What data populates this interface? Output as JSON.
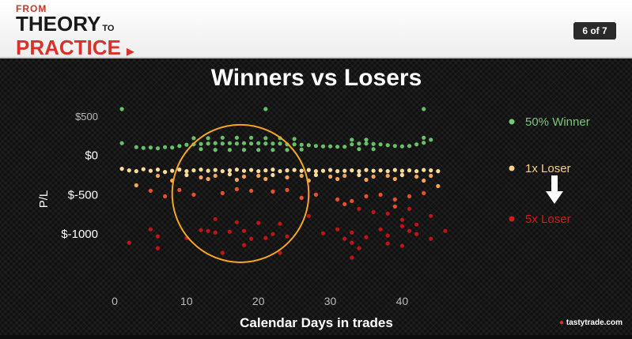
{
  "header": {
    "logo_from": "FROM",
    "logo_theory": "THEORY",
    "logo_to": "TO",
    "logo_practice": "PRACTICE",
    "page_indicator": "6 of 7"
  },
  "brand": {
    "name": "tastytrade.com"
  },
  "colors": {
    "winner": "#6abf69",
    "loser1x": "#f7d08a",
    "loser5x": "#d7191c",
    "ellipse": "#f5a623",
    "arrow": "#ffffff"
  },
  "chart_data": {
    "type": "scatter",
    "title": "Winners vs Losers",
    "xlabel": "Calendar Days in trades",
    "ylabel": "P/L",
    "xlim": [
      0,
      47
    ],
    "ylim": [
      -1300,
      650
    ],
    "x_ticks": [
      0,
      10,
      20,
      30,
      40
    ],
    "y_ticks": [
      {
        "value": 500,
        "label": "$500"
      },
      {
        "value": 0,
        "label": "$0"
      },
      {
        "value": -500,
        "label": "$-500"
      },
      {
        "value": -1000,
        "label": "$-1000"
      }
    ],
    "legend": [
      {
        "name": "50% Winner",
        "color": "#6abf69"
      },
      {
        "name": "1x Loser",
        "color": "#f7d08a"
      },
      {
        "name": "5x Loser",
        "color": "#d7191c"
      }
    ],
    "annotation": {
      "type": "ellipse",
      "center": [
        17,
        -400
      ],
      "x_range": [
        8,
        27
      ],
      "y_range": [
        -1360,
        390
      ]
    },
    "series": [
      {
        "name": "50% Winner",
        "points": [
          [
            1,
            590
          ],
          [
            21,
            590
          ],
          [
            43,
            590
          ],
          [
            1,
            155
          ],
          [
            3,
            105
          ],
          [
            4,
            95
          ],
          [
            5,
            100
          ],
          [
            6,
            90
          ],
          [
            7,
            105
          ],
          [
            8,
            100
          ],
          [
            9,
            120
          ],
          [
            10,
            135
          ],
          [
            11,
            140
          ],
          [
            12,
            145
          ],
          [
            13,
            150
          ],
          [
            14,
            155
          ],
          [
            15,
            150
          ],
          [
            16,
            155
          ],
          [
            17,
            150
          ],
          [
            18,
            155
          ],
          [
            19,
            150
          ],
          [
            20,
            155
          ],
          [
            21,
            150
          ],
          [
            22,
            150
          ],
          [
            23,
            150
          ],
          [
            24,
            140
          ],
          [
            25,
            140
          ],
          [
            26,
            135
          ],
          [
            27,
            130
          ],
          [
            28,
            120
          ],
          [
            29,
            115
          ],
          [
            30,
            115
          ],
          [
            31,
            110
          ],
          [
            32,
            110
          ],
          [
            33,
            140
          ],
          [
            34,
            150
          ],
          [
            35,
            150
          ],
          [
            36,
            145
          ],
          [
            37,
            140
          ],
          [
            38,
            130
          ],
          [
            39,
            120
          ],
          [
            40,
            115
          ],
          [
            41,
            120
          ],
          [
            42,
            140
          ],
          [
            43,
            160
          ],
          [
            44,
            200
          ],
          [
            11,
            220
          ],
          [
            13,
            220
          ],
          [
            15,
            225
          ],
          [
            17,
            225
          ],
          [
            19,
            225
          ],
          [
            21,
            220
          ],
          [
            23,
            220
          ],
          [
            25,
            210
          ],
          [
            33,
            200
          ],
          [
            35,
            200
          ],
          [
            43,
            225
          ],
          [
            12,
            80
          ],
          [
            14,
            70
          ],
          [
            16,
            70
          ],
          [
            18,
            70
          ],
          [
            20,
            70
          ],
          [
            22,
            70
          ],
          [
            24,
            70
          ],
          [
            26,
            75
          ],
          [
            34,
            80
          ],
          [
            36,
            80
          ]
        ]
      },
      {
        "name": "1x Loser",
        "points": [
          [
            1,
            -170
          ],
          [
            2,
            -190
          ],
          [
            3,
            -200
          ],
          [
            4,
            -175
          ],
          [
            5,
            -195
          ],
          [
            6,
            -180
          ],
          [
            7,
            -210
          ],
          [
            8,
            -195
          ],
          [
            9,
            -180
          ],
          [
            10,
            -200
          ],
          [
            11,
            -190
          ],
          [
            12,
            -180
          ],
          [
            13,
            -195
          ],
          [
            14,
            -185
          ],
          [
            15,
            -200
          ],
          [
            16,
            -190
          ],
          [
            17,
            -180
          ],
          [
            18,
            -195
          ],
          [
            19,
            -185
          ],
          [
            20,
            -200
          ],
          [
            21,
            -190
          ],
          [
            22,
            -180
          ],
          [
            23,
            -200
          ],
          [
            24,
            -190
          ],
          [
            25,
            -185
          ],
          [
            26,
            -195
          ],
          [
            27,
            -185
          ],
          [
            28,
            -200
          ],
          [
            29,
            -195
          ],
          [
            30,
            -185
          ],
          [
            31,
            -200
          ],
          [
            32,
            -195
          ],
          [
            33,
            -190
          ],
          [
            34,
            -200
          ],
          [
            35,
            -185
          ],
          [
            36,
            -195
          ],
          [
            37,
            -190
          ],
          [
            38,
            -200
          ],
          [
            39,
            -185
          ],
          [
            40,
            -195
          ],
          [
            41,
            -190
          ],
          [
            42,
            -200
          ],
          [
            43,
            -185
          ],
          [
            44,
            -190
          ],
          [
            45,
            -200
          ],
          [
            6,
            -260
          ],
          [
            10,
            -250
          ],
          [
            12,
            -280
          ],
          [
            14,
            -260
          ],
          [
            16,
            -240
          ],
          [
            18,
            -270
          ],
          [
            20,
            -260
          ],
          [
            22,
            -250
          ],
          [
            24,
            -280
          ],
          [
            26,
            -260
          ],
          [
            28,
            -250
          ],
          [
            30,
            -270
          ],
          [
            32,
            -260
          ],
          [
            34,
            -250
          ],
          [
            36,
            -270
          ],
          [
            38,
            -260
          ],
          [
            40,
            -250
          ],
          [
            42,
            -270
          ],
          [
            44,
            -260
          ],
          [
            8,
            -320
          ],
          [
            13,
            -300
          ],
          [
            17,
            -310
          ],
          [
            21,
            -300
          ],
          [
            27,
            -320
          ],
          [
            31,
            -300
          ],
          [
            35,
            -310
          ],
          [
            39,
            -300
          ],
          [
            43,
            -320
          ]
        ]
      },
      {
        "name": "5x Loser",
        "points": [
          [
            3,
            -380
          ],
          [
            5,
            -450
          ],
          [
            7,
            -520
          ],
          [
            9,
            -440
          ],
          [
            11,
            -500
          ],
          [
            15,
            -480
          ],
          [
            17,
            -430
          ],
          [
            19,
            -450
          ],
          [
            22,
            -460
          ],
          [
            24,
            -440
          ],
          [
            26,
            -540
          ],
          [
            28,
            -500
          ],
          [
            31,
            -560
          ],
          [
            33,
            -580
          ],
          [
            35,
            -520
          ],
          [
            37,
            -500
          ],
          [
            39,
            -560
          ],
          [
            41,
            -520
          ],
          [
            43,
            -480
          ],
          [
            45,
            -390
          ],
          [
            32,
            -620
          ],
          [
            34,
            -680
          ],
          [
            36,
            -720
          ],
          [
            38,
            -740
          ],
          [
            39,
            -650
          ],
          [
            41,
            -680
          ],
          [
            44,
            -770
          ],
          [
            40,
            -820
          ],
          [
            42,
            -880
          ],
          [
            14,
            -810
          ],
          [
            17,
            -850
          ],
          [
            20,
            -860
          ],
          [
            23,
            -870
          ],
          [
            27,
            -770
          ],
          [
            12,
            -950
          ],
          [
            5,
            -940
          ],
          [
            13,
            -960
          ],
          [
            14,
            -980
          ],
          [
            16,
            -970
          ],
          [
            18,
            -960
          ],
          [
            22,
            -1000
          ],
          [
            29,
            -990
          ],
          [
            31,
            -940
          ],
          [
            33,
            -980
          ],
          [
            37,
            -940
          ],
          [
            40,
            -900
          ],
          [
            41,
            -960
          ],
          [
            46,
            -960
          ],
          [
            6,
            -1030
          ],
          [
            10,
            -1050
          ],
          [
            21,
            -1050
          ],
          [
            24,
            -1030
          ],
          [
            32,
            -1060
          ],
          [
            35,
            -1040
          ],
          [
            38,
            -1020
          ],
          [
            42,
            -1000
          ],
          [
            44,
            -1060
          ],
          [
            2,
            -1110
          ],
          [
            6,
            -1180
          ],
          [
            18,
            -1140
          ],
          [
            33,
            -1110
          ],
          [
            34,
            -1180
          ],
          [
            38,
            -1120
          ],
          [
            19,
            -1060
          ],
          [
            15,
            -1240
          ],
          [
            23,
            -1240
          ],
          [
            33,
            -1300
          ],
          [
            40,
            -1150
          ]
        ]
      }
    ]
  }
}
